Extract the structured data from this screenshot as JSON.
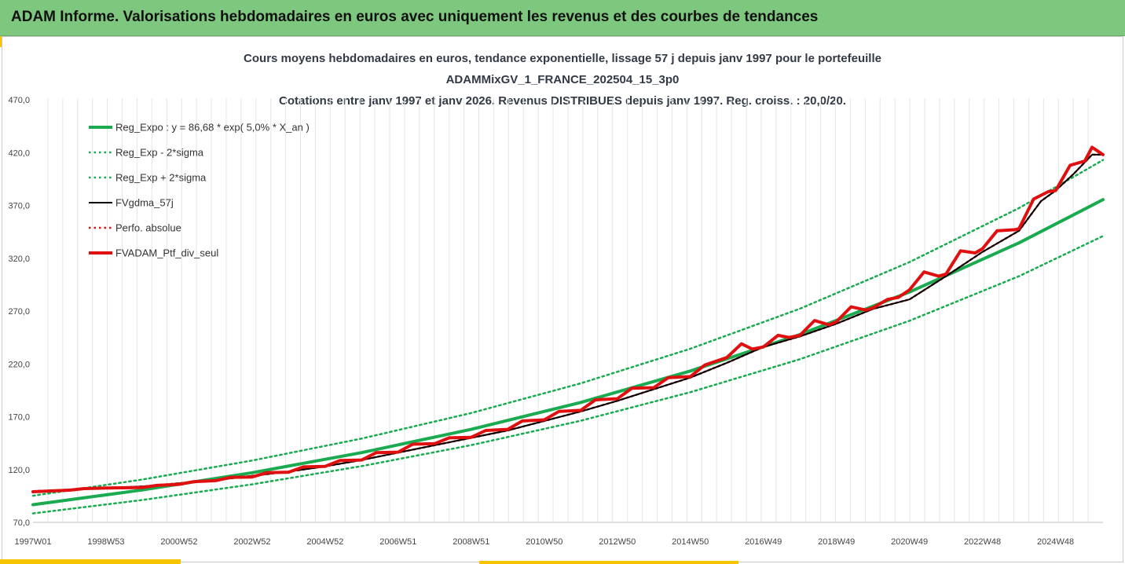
{
  "banner": {
    "title": "ADAM Informe. Valorisations hebdomadaires en euros avec uniquement les revenus et des courbes de tendances"
  },
  "colors": {
    "banner_bg": "#7ec77e",
    "accent": "#f6c400",
    "trend": "#1aaa50",
    "smooth": "#000000",
    "portfolio": "#e01010"
  },
  "chart_data": {
    "type": "line",
    "title_lines": [
      "Cours moyens hebdomadaires  en euros, tendance exponentielle, lissage 57 j depuis janv 1997 pour le portefeuille",
      "ADAMMixGV_1_FRANCE_202504_15_3p0",
      "Cotations entre janv 1997 et janv 2026. Revenus DISTRIBUES depuis janv 1997. Reg. croiss. : 20,0/20."
    ],
    "xlabel": "",
    "ylabel": "",
    "ylim": [
      70,
      470
    ],
    "xlim": [
      1997.0,
      2026.3
    ],
    "y_ticks": [
      "70,0",
      "120,0",
      "170,0",
      "220,0",
      "270,0",
      "320,0",
      "370,0",
      "420,0",
      "470,0"
    ],
    "x_ticks": [
      {
        "label": "1997W01",
        "x": 1997.0
      },
      {
        "label": "1998W53",
        "x": 1999.0
      },
      {
        "label": "2000W52",
        "x": 2001.0
      },
      {
        "label": "2002W52",
        "x": 2003.0
      },
      {
        "label": "2004W52",
        "x": 2005.0
      },
      {
        "label": "2006W51",
        "x": 2007.0
      },
      {
        "label": "2008W51",
        "x": 2009.0
      },
      {
        "label": "2010W50",
        "x": 2011.0
      },
      {
        "label": "2012W50",
        "x": 2013.0
      },
      {
        "label": "2014W50",
        "x": 2015.0
      },
      {
        "label": "2016W49",
        "x": 2017.0
      },
      {
        "label": "2018W49",
        "x": 2019.0
      },
      {
        "label": "2020W49",
        "x": 2021.0
      },
      {
        "label": "2022W48",
        "x": 2023.0
      },
      {
        "label": "2024W48",
        "x": 2025.0
      }
    ],
    "grid": "vertical",
    "legend_position": "top-left",
    "series": [
      {
        "name": "Reg_Expo : y = 86,68 * exp( 5,0% *  X_an )",
        "style": "solid-thick",
        "color": "#1aaa50",
        "x": [
          1997.0,
          2000.0,
          2003.0,
          2006.0,
          2009.0,
          2012.0,
          2015.0,
          2018.0,
          2021.0,
          2024.0,
          2026.3
        ],
        "values": [
          86.7,
          100.7,
          117.0,
          136.0,
          158.0,
          183.5,
          213.3,
          247.8,
          288.0,
          334.5,
          375.5
        ]
      },
      {
        "name": "Reg_Exp - 2*sigma",
        "style": "dotted",
        "color": "#1aaa50",
        "x": [
          1997.0,
          2000.0,
          2003.0,
          2006.0,
          2009.0,
          2012.0,
          2015.0,
          2018.0,
          2021.0,
          2024.0,
          2026.3
        ],
        "values": [
          78.5,
          91.2,
          106.0,
          123.2,
          143.1,
          166.2,
          193.2,
          224.4,
          260.8,
          303.0,
          341.0
        ]
      },
      {
        "name": "Reg_Exp + 2*sigma",
        "style": "dotted",
        "color": "#1aaa50",
        "x": [
          1997.0,
          2000.0,
          2003.0,
          2006.0,
          2009.0,
          2012.0,
          2015.0,
          2018.0,
          2021.0,
          2024.0,
          2026.3
        ],
        "values": [
          95.2,
          110.6,
          128.5,
          149.3,
          173.5,
          201.6,
          234.3,
          272.2,
          316.3,
          367.5,
          413.0
        ]
      },
      {
        "name": "FVgdma_57j",
        "style": "solid",
        "color": "#000000",
        "x": [
          1997.0,
          1998.0,
          1999.0,
          2000.0,
          2001.0,
          2002.0,
          2003.0,
          2004.0,
          2005.0,
          2006.0,
          2007.0,
          2008.0,
          2009.0,
          2010.0,
          2011.0,
          2012.0,
          2013.0,
          2014.0,
          2015.0,
          2016.0,
          2017.0,
          2018.0,
          2019.0,
          2020.0,
          2021.0,
          2022.0,
          2023.0,
          2024.0,
          2024.6,
          2025.0,
          2025.5,
          2026.0,
          2026.3
        ],
        "values": [
          99.5,
          101.0,
          102.5,
          104.0,
          107.0,
          110.0,
          114.0,
          118.0,
          123.0,
          129.0,
          136.0,
          143.0,
          150.0,
          157.0,
          166.0,
          175.0,
          185.0,
          196.0,
          207.0,
          221.0,
          236.0,
          246.0,
          258.0,
          272.0,
          281.0,
          303.0,
          326.0,
          346.0,
          374.0,
          384.0,
          400.0,
          418.0,
          418.0
        ]
      },
      {
        "name": "Perfo. absolue",
        "style": "dotted",
        "color": "#e01010",
        "x": [
          1997.0,
          1998.0,
          1999.0,
          2000.0,
          2001.0,
          2002.0,
          2003.0,
          2004.0,
          2005.0,
          2006.0,
          2007.0,
          2008.0,
          2009.0,
          2010.0,
          2011.0,
          2012.0,
          2013.0,
          2014.0,
          2015.0,
          2016.0,
          2017.0,
          2018.0,
          2019.0,
          2020.0,
          2021.0,
          2022.0,
          2023.0,
          2024.0,
          2024.6,
          2025.0,
          2025.5,
          2026.0,
          2026.3
        ],
        "values": [
          99.5,
          101.0,
          102.5,
          104.0,
          107.0,
          110.0,
          114.0,
          118.0,
          123.0,
          129.0,
          136.0,
          143.0,
          150.0,
          157.0,
          166.0,
          175.0,
          185.0,
          196.0,
          207.0,
          221.0,
          236.0,
          246.0,
          258.0,
          272.0,
          281.0,
          303.0,
          326.0,
          346.0,
          374.0,
          384.0,
          400.0,
          418.0,
          418.0
        ]
      },
      {
        "name": "FVADAM_Ptf_div_seul",
        "style": "solid-thick",
        "color": "#e01010",
        "x": [
          1997.0,
          1998.0,
          1998.4,
          1999.0,
          2000.0,
          2000.4,
          2001.0,
          2001.4,
          2002.0,
          2002.4,
          2003.0,
          2003.4,
          2004.0,
          2004.4,
          2005.0,
          2005.4,
          2006.0,
          2006.4,
          2007.0,
          2007.4,
          2008.0,
          2008.4,
          2009.0,
          2009.4,
          2010.0,
          2010.4,
          2011.0,
          2011.4,
          2012.0,
          2012.4,
          2013.0,
          2013.4,
          2014.0,
          2014.4,
          2015.0,
          2015.4,
          2016.0,
          2016.4,
          2016.7,
          2017.0,
          2017.4,
          2017.7,
          2018.0,
          2018.4,
          2018.8,
          2019.0,
          2019.4,
          2019.8,
          2020.0,
          2020.4,
          2020.7,
          2021.0,
          2021.4,
          2021.8,
          2022.0,
          2022.4,
          2022.8,
          2023.0,
          2023.4,
          2023.9,
          2024.0,
          2024.4,
          2024.8,
          2025.0,
          2025.4,
          2025.8,
          2026.0,
          2026.3
        ],
        "values": [
          99.0,
          100.5,
          102.0,
          102.5,
          103.0,
          105.0,
          106.0,
          108.5,
          109.5,
          112.5,
          113.0,
          117.0,
          117.5,
          122.5,
          123.0,
          128.5,
          129.0,
          136.0,
          136.5,
          144.0,
          144.5,
          150.0,
          150.5,
          157.0,
          158.0,
          166.0,
          167.0,
          175.0,
          176.0,
          186.0,
          187.0,
          197.0,
          197.5,
          207.0,
          208.0,
          219.0,
          226.0,
          239.0,
          234.0,
          236.0,
          247.0,
          245.0,
          247.0,
          261.0,
          257.0,
          260.0,
          274.0,
          271.0,
          273.0,
          281.0,
          283.0,
          290.0,
          307.0,
          303.0,
          305.0,
          327.0,
          325.0,
          329.0,
          346.0,
          347.0,
          348.0,
          376.0,
          383.0,
          384.0,
          408.0,
          412.0,
          425.0,
          418.0
        ]
      }
    ]
  }
}
